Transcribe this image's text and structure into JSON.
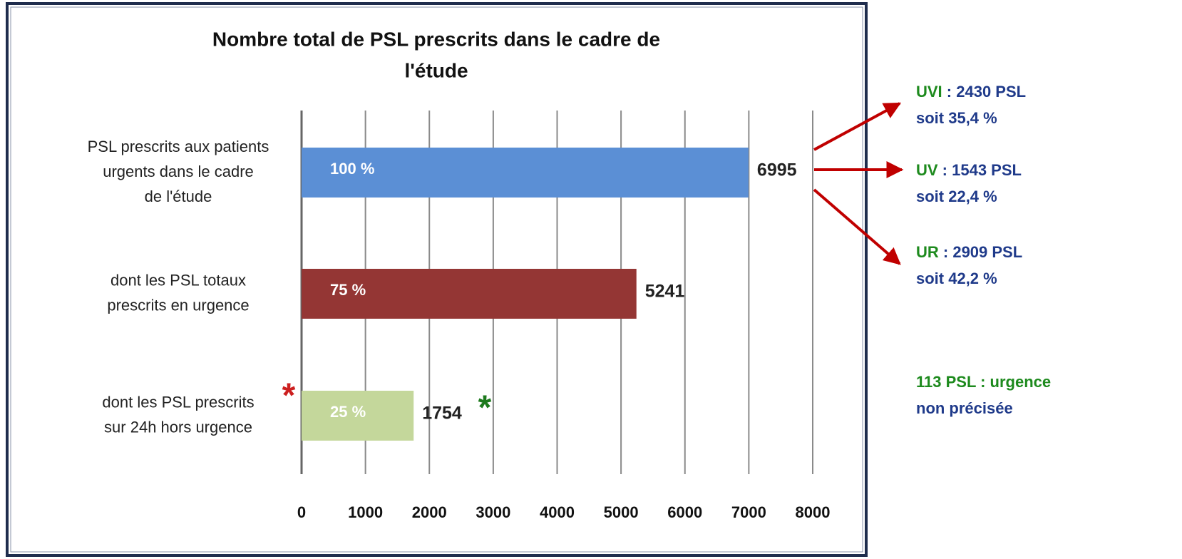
{
  "chart_data": {
    "type": "bar",
    "orientation": "horizontal",
    "title": [
      "Nombre total de PSL prescrits dans le cadre de",
      "l'étude"
    ],
    "categories": [
      [
        "PSL prescrits aux patients",
        "urgents dans le cadre",
        "de l'étude"
      ],
      [
        "dont les PSL totaux",
        "prescrits en urgence"
      ],
      [
        "dont les PSL prescrits",
        "sur 24h hors urgence"
      ]
    ],
    "values": [
      6995,
      5241,
      1754
    ],
    "colors": [
      "#5b8fd5",
      "#943634",
      "#c4d79b"
    ],
    "bar_annotations": [
      "100 %",
      "75 %",
      "25 %"
    ],
    "xlim": [
      0,
      8000
    ],
    "xticks": [
      0,
      1000,
      2000,
      3000,
      4000,
      5000,
      6000,
      7000,
      8000
    ],
    "grid": true,
    "asterisks": [
      {
        "text": "*",
        "color": "#cc1f1f"
      },
      {
        "text": "*",
        "color": "#1d7a1d"
      }
    ],
    "side_notes": [
      {
        "code": "UVI",
        "text": " : 2430 PSL",
        "line2": "soit 35,4 %"
      },
      {
        "code": "UV",
        "text": " : 1543 PSL",
        "line2": "soit 22,4 %"
      },
      {
        "code": "UR",
        "text": " : 2909 PSL",
        "line2": "soit 42,2 %"
      },
      {
        "code": "113 PSL : urgence",
        "text": "",
        "line2": "non précisée"
      }
    ]
  }
}
